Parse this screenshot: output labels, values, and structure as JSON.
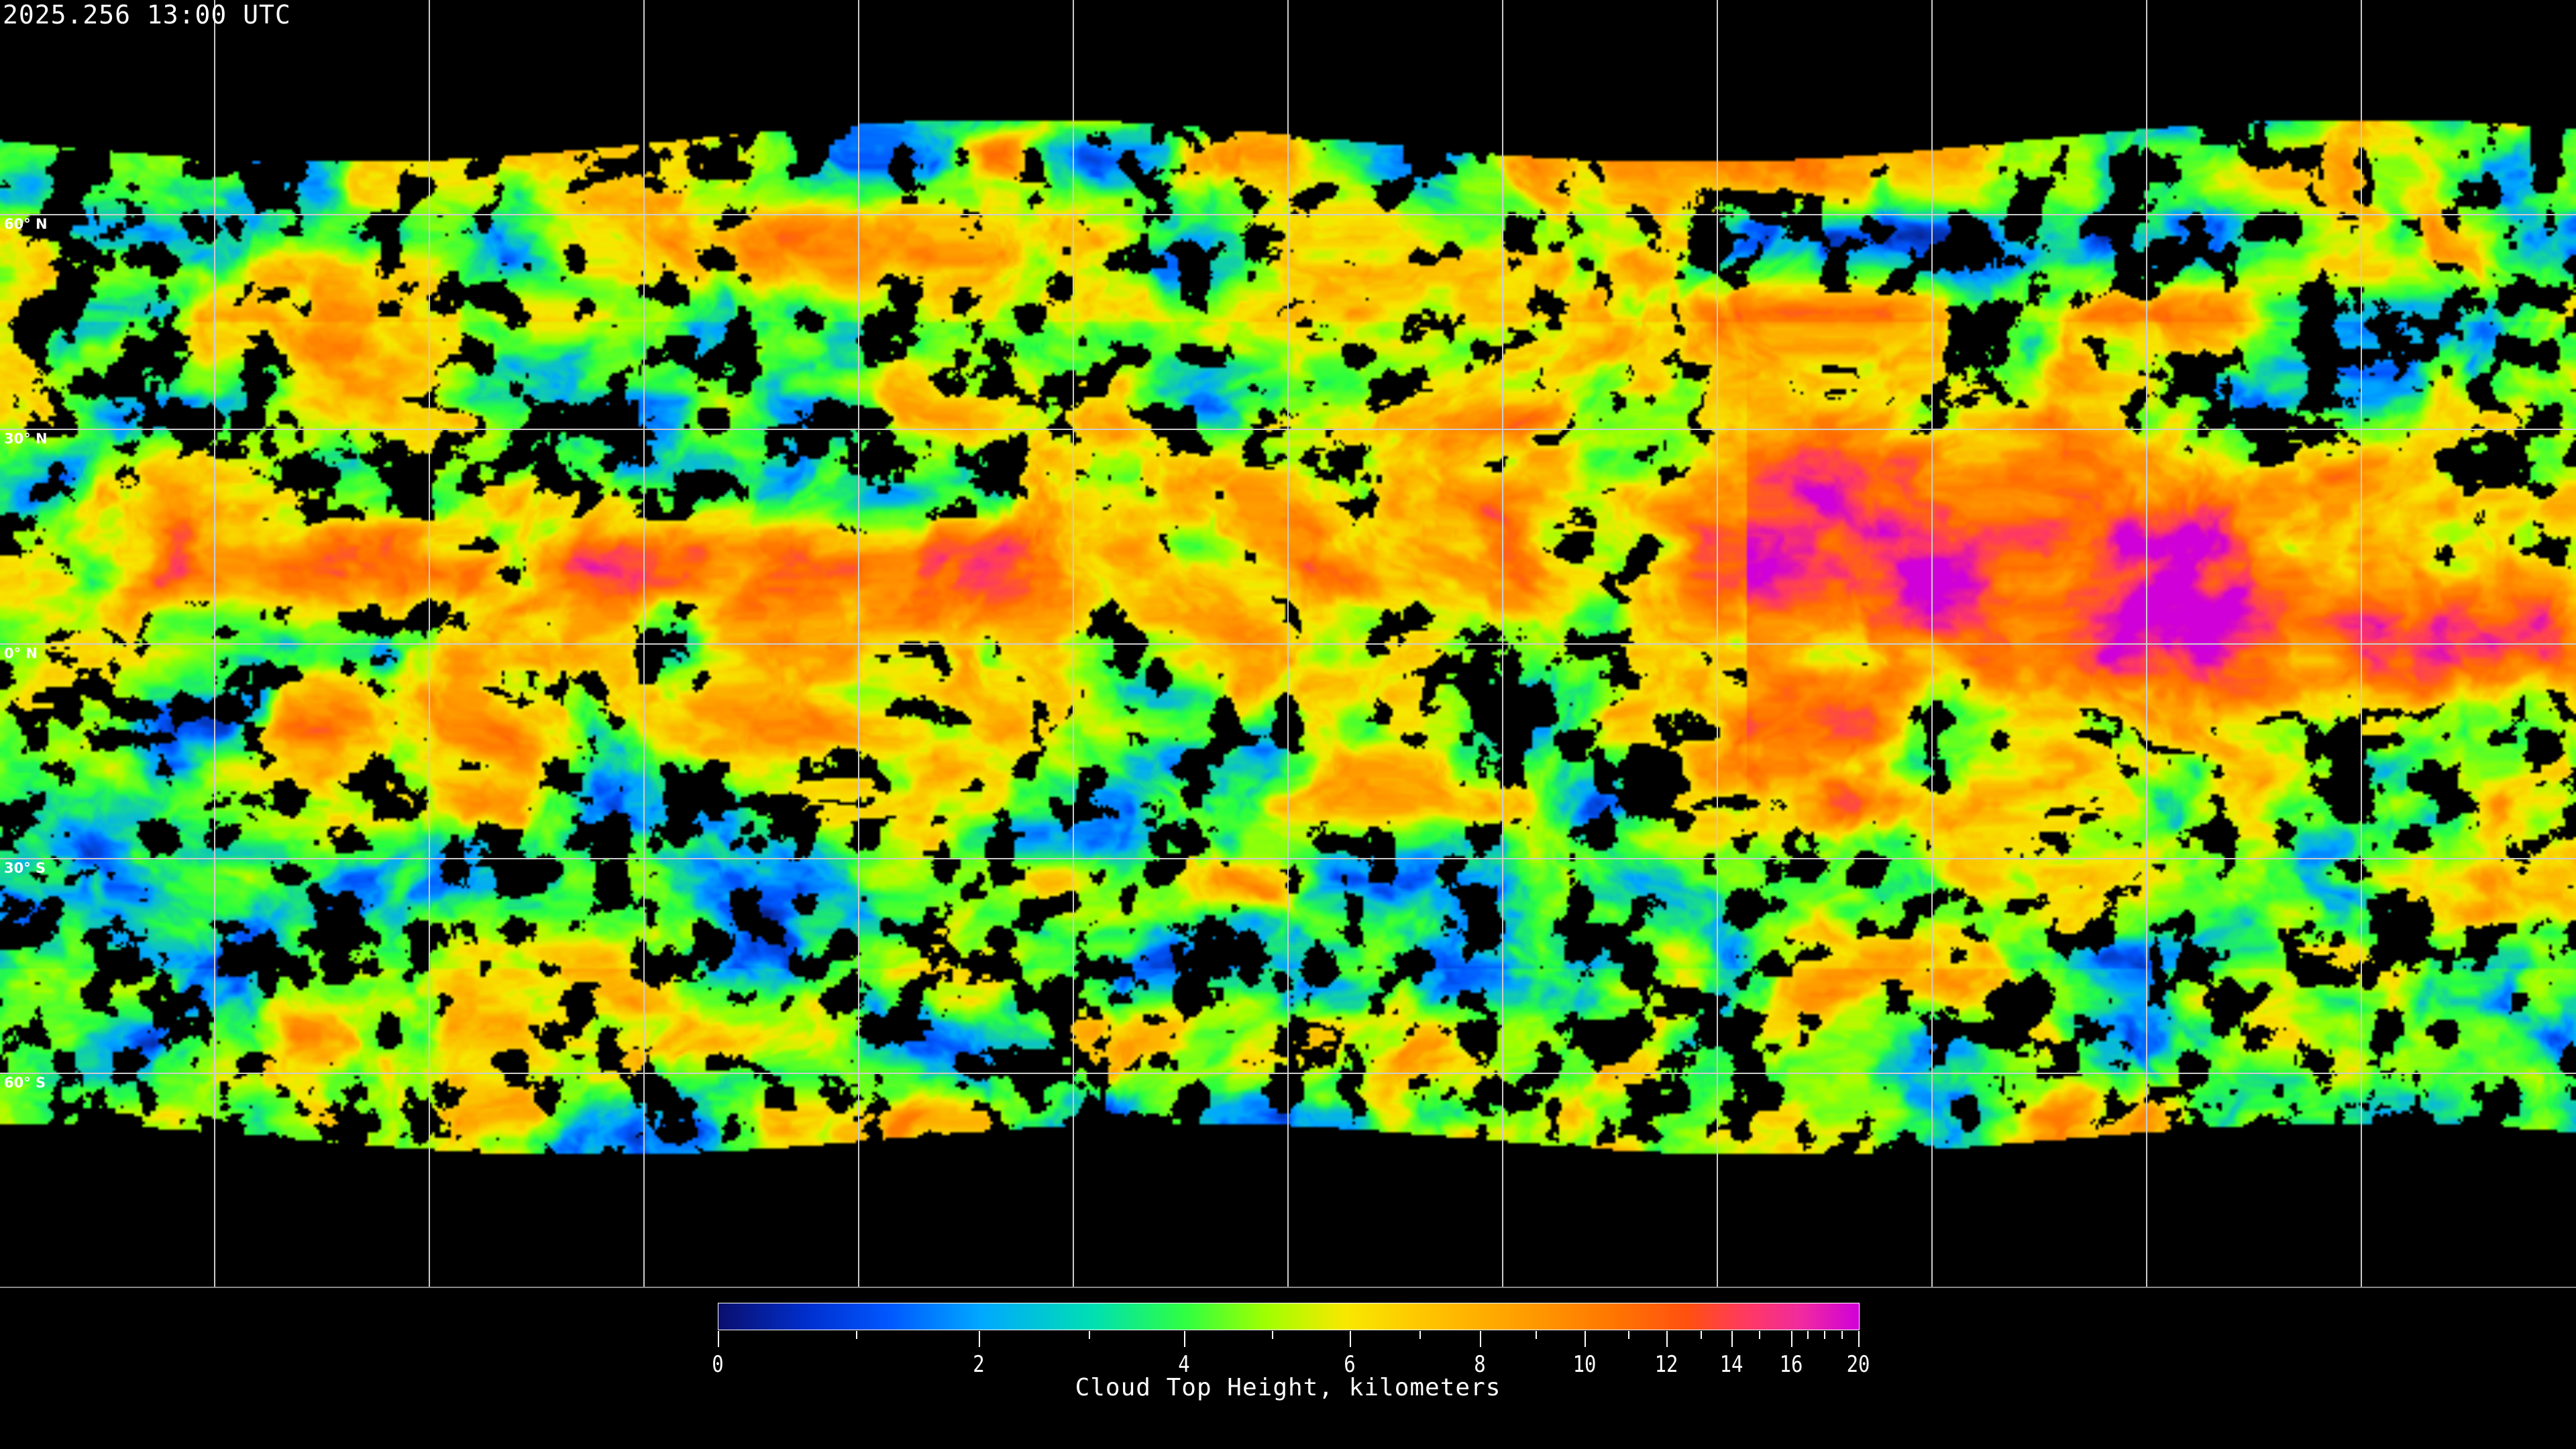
{
  "title": "2025.256 13:00 UTC",
  "latitude_labels": [
    "60° N",
    "30° N",
    "0° N",
    "30° S",
    "60° S"
  ],
  "colorbar": {
    "title": "Cloud Top Height, kilometers",
    "range_km": [
      0,
      20
    ],
    "major_ticks": [
      {
        "value": 0,
        "label": "0"
      },
      {
        "value": 2,
        "label": "2"
      },
      {
        "value": 4,
        "label": "4"
      },
      {
        "value": 6,
        "label": "6"
      },
      {
        "value": 8,
        "label": "8"
      },
      {
        "value": 10,
        "label": "10"
      },
      {
        "value": 12,
        "label": "12"
      },
      {
        "value": 14,
        "label": "14"
      },
      {
        "value": 16,
        "label": "16"
      },
      {
        "value": 20,
        "label": "20"
      }
    ],
    "minor_ticks": [
      1,
      3,
      5,
      7,
      9,
      11,
      13,
      15,
      17,
      18,
      19
    ],
    "colors": [
      "#0a0f6e",
      "#0058ff",
      "#00a8ff",
      "#30ff40",
      "#f8e800",
      "#ffa000",
      "#ff5010",
      "#ff3a60",
      "#d000d8"
    ]
  },
  "grid": {
    "lon_spacing_deg": 30,
    "lat_spacing_deg": 30
  }
}
